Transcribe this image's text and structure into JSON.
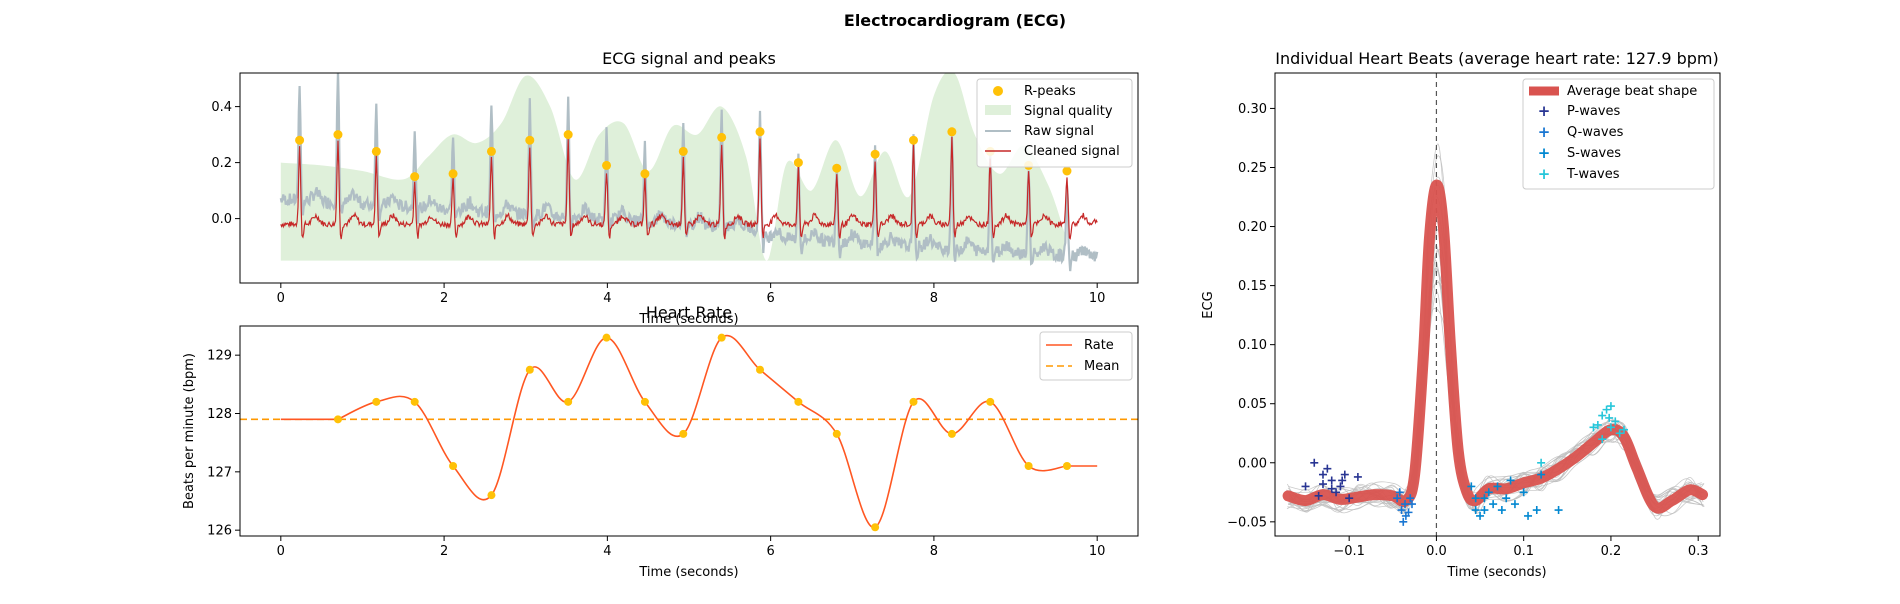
{
  "figure": {
    "suptitle": "Electrocardiogram (ECG)"
  },
  "chart_data": [
    {
      "type": "line",
      "title": "ECG signal and peaks",
      "xlabel": "Time (seconds)",
      "ylabel": "",
      "xlim": [
        -0.5,
        10.5
      ],
      "ylim": [
        -0.23,
        0.52
      ],
      "xticks": [
        0,
        2,
        4,
        6,
        8,
        10
      ],
      "yticks": [
        0.0,
        0.2,
        0.4
      ],
      "ytick_labels": [
        "0.0",
        "0.2",
        "0.4"
      ],
      "legend_position": "top-right",
      "legend": [
        "R-peaks",
        "Signal quality",
        "Raw signal",
        "Cleaned signal"
      ],
      "colors": {
        "rpeaks": "#FFC107",
        "quality": "#DFF0DA",
        "raw": "#B0BEC5",
        "cleaned": "#C62828"
      },
      "r_peaks": {
        "x": [
          0.23,
          0.7,
          1.17,
          1.64,
          2.11,
          2.58,
          3.05,
          3.52,
          3.99,
          4.46,
          4.93,
          5.4,
          5.87,
          6.34,
          6.81,
          7.28,
          7.75,
          8.22,
          8.69,
          9.16,
          9.63
        ],
        "y": [
          0.28,
          0.3,
          0.24,
          0.15,
          0.16,
          0.24,
          0.28,
          0.3,
          0.19,
          0.16,
          0.24,
          0.29,
          0.31,
          0.2,
          0.18,
          0.23,
          0.28,
          0.31,
          0.24,
          0.19,
          0.17
        ]
      },
      "raw_peaks_y": [
        0.48,
        0.52,
        0.44,
        0.35,
        0.33,
        0.45,
        0.47,
        0.47,
        0.37,
        0.35,
        0.42,
        0.47,
        0.49,
        0.36,
        0.34,
        0.4,
        0.44,
        0.48,
        0.41,
        0.37,
        0.33
      ],
      "signal_quality": {
        "x": [
          0,
          0.5,
          1.0,
          1.5,
          1.8,
          2.1,
          2.4,
          2.7,
          3.0,
          3.3,
          3.6,
          3.9,
          4.2,
          4.5,
          4.8,
          5.1,
          5.4,
          5.7,
          5.95,
          6.2,
          6.5,
          6.8,
          7.1,
          7.4,
          7.7,
          8.0,
          8.25,
          8.5,
          8.8,
          9.1,
          9.4,
          9.6
        ],
        "y": [
          0.2,
          0.19,
          0.17,
          0.14,
          0.22,
          0.3,
          0.27,
          0.34,
          0.51,
          0.4,
          0.14,
          0.3,
          0.34,
          0.17,
          0.33,
          0.3,
          0.4,
          0.22,
          -0.15,
          0.2,
          0.1,
          0.28,
          0.08,
          0.24,
          0.08,
          0.44,
          0.52,
          0.3,
          0.16,
          0.26,
          0.12,
          -0.05
        ]
      }
    },
    {
      "type": "line",
      "title": "Heart Rate",
      "xlabel": "Time (seconds)",
      "ylabel": "Beats per minute (bpm)",
      "xlim": [
        -0.5,
        10.5
      ],
      "ylim": [
        125.9,
        129.5
      ],
      "xticks": [
        0,
        2,
        4,
        6,
        8,
        10
      ],
      "yticks": [
        126,
        127,
        128,
        129
      ],
      "legend_position": "top-right",
      "legend": [
        "Rate",
        "Mean"
      ],
      "colors": {
        "rate": "#FF5722",
        "mean": "#FF9800",
        "points": "#FFC107"
      },
      "mean": 127.9,
      "points": {
        "x": [
          0.7,
          1.17,
          1.64,
          2.11,
          2.58,
          3.05,
          3.52,
          3.99,
          4.46,
          4.93,
          5.4,
          5.87,
          6.34,
          6.81,
          7.28,
          7.75,
          8.22,
          8.69,
          9.16,
          9.63
        ],
        "y": [
          127.9,
          128.2,
          128.2,
          127.1,
          126.6,
          128.75,
          128.2,
          129.3,
          128.2,
          127.65,
          129.3,
          128.75,
          128.2,
          127.65,
          126.05,
          128.2,
          127.65,
          128.2,
          127.1,
          127.1
        ]
      },
      "start": [
        0,
        127.9
      ],
      "end": [
        10,
        127.1
      ]
    },
    {
      "type": "line",
      "title": "Individual Heart Beats (average heart rate: 127.9 bpm)",
      "xlabel": "Time (seconds)",
      "ylabel": "ECG",
      "xlim": [
        -0.185,
        0.325
      ],
      "ylim": [
        -0.062,
        0.33
      ],
      "xticks": [
        -0.1,
        0.0,
        0.1,
        0.2,
        0.3
      ],
      "xtick_labels": [
        "−0.1",
        "0.0",
        "0.1",
        "0.2",
        "0.3"
      ],
      "yticks": [
        -0.05,
        0.0,
        0.05,
        0.1,
        0.15,
        0.2,
        0.25,
        0.3
      ],
      "ytick_labels": [
        "−0.05",
        "0.00",
        "0.05",
        "0.10",
        "0.15",
        "0.20",
        "0.25",
        "0.30"
      ],
      "legend_position": "top-right",
      "legend": [
        "Average beat shape",
        "P-waves",
        "Q-waves",
        "S-waves",
        "T-waves"
      ],
      "colors": {
        "average": "#D9534F",
        "p": "#283593",
        "q": "#1976D2",
        "s": "#0288D1",
        "t": "#26C6DA",
        "beats": "#BDBDBD"
      },
      "average_beat": {
        "x": [
          -0.17,
          -0.15,
          -0.13,
          -0.11,
          -0.09,
          -0.07,
          -0.05,
          -0.035,
          -0.025,
          -0.015,
          -0.008,
          0.0,
          0.008,
          0.016,
          0.025,
          0.035,
          0.045,
          0.06,
          0.08,
          0.1,
          0.12,
          0.14,
          0.16,
          0.18,
          0.2,
          0.215,
          0.23,
          0.25,
          0.27,
          0.29,
          0.305
        ],
        "y": [
          -0.028,
          -0.032,
          -0.027,
          -0.031,
          -0.029,
          -0.027,
          -0.028,
          -0.032,
          -0.01,
          0.09,
          0.19,
          0.235,
          0.2,
          0.1,
          0.01,
          -0.025,
          -0.032,
          -0.022,
          -0.022,
          -0.017,
          -0.013,
          -0.005,
          0.005,
          0.017,
          0.028,
          0.022,
          -0.005,
          -0.037,
          -0.032,
          -0.023,
          -0.027
        ]
      },
      "p_waves": {
        "x": [
          -0.15,
          -0.14,
          -0.13,
          -0.12,
          -0.115,
          -0.105,
          -0.1,
          -0.13,
          -0.12,
          -0.09,
          -0.11,
          -0.135,
          -0.125,
          -0.108
        ],
        "y": [
          -0.02,
          -0.0,
          -0.01,
          -0.015,
          -0.025,
          -0.01,
          -0.03,
          -0.018,
          -0.022,
          -0.012,
          -0.02,
          -0.028,
          -0.005,
          -0.015
        ]
      },
      "q_waves": {
        "x": [
          -0.045,
          -0.04,
          -0.035,
          -0.03,
          -0.038,
          -0.028,
          -0.042,
          -0.032,
          -0.036
        ],
        "y": [
          -0.03,
          -0.04,
          -0.045,
          -0.03,
          -0.05,
          -0.035,
          -0.025,
          -0.042,
          -0.035
        ]
      },
      "s_waves": {
        "x": [
          0.04,
          0.045,
          0.05,
          0.055,
          0.06,
          0.065,
          0.07,
          0.075,
          0.08,
          0.085,
          0.09,
          0.1,
          0.105,
          0.115,
          0.12,
          0.14,
          0.045,
          0.055
        ],
        "y": [
          -0.02,
          -0.03,
          -0.045,
          -0.04,
          -0.025,
          -0.035,
          -0.02,
          -0.04,
          -0.03,
          -0.015,
          -0.035,
          -0.025,
          -0.045,
          -0.04,
          -0.01,
          -0.04,
          -0.04,
          -0.03
        ]
      },
      "t_waves": {
        "x": [
          0.12,
          0.18,
          0.19,
          0.195,
          0.2,
          0.205,
          0.21,
          0.19,
          0.2,
          0.215,
          0.185,
          0.198
        ],
        "y": [
          0.0,
          0.03,
          0.04,
          0.045,
          0.048,
          0.035,
          0.025,
          0.02,
          0.03,
          0.028,
          0.032,
          0.038
        ]
      },
      "vline_x": 0.0
    }
  ]
}
